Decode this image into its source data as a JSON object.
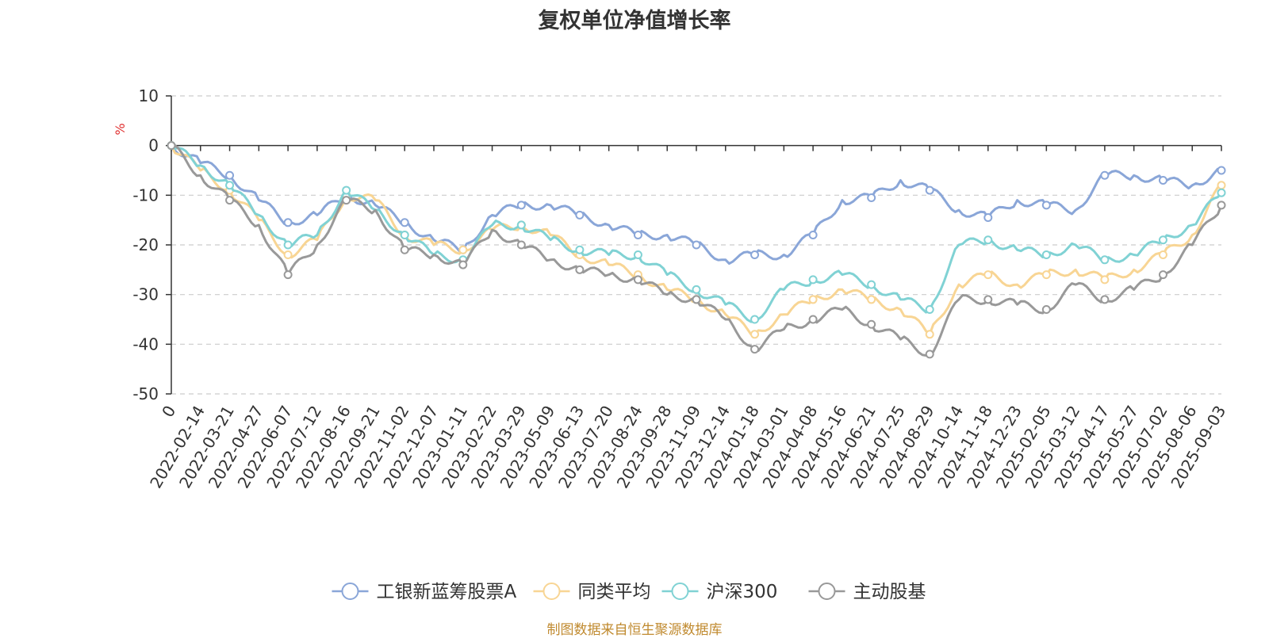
{
  "chart_data": {
    "type": "line",
    "title": "复权单位净值增长率",
    "ylabel": "%",
    "ylim": [
      -50,
      10
    ],
    "yticks": [
      10,
      0,
      -10,
      -20,
      -30,
      -40,
      -50
    ],
    "x_tick_labels": [
      "0",
      "2022-02-14",
      "2022-03-21",
      "2022-04-27",
      "2022-06-07",
      "2022-07-12",
      "2022-08-16",
      "2022-09-21",
      "2022-11-02",
      "2022-12-07",
      "2023-01-11",
      "2023-02-22",
      "2023-03-29",
      "2023-05-09",
      "2023-06-13",
      "2023-07-20",
      "2023-08-24",
      "2023-09-28",
      "2023-11-09",
      "2023-12-14",
      "2024-01-18",
      "2024-03-01",
      "2024-04-08",
      "2024-05-16",
      "2024-06-21",
      "2024-07-25",
      "2024-08-29",
      "2024-10-14",
      "2024-11-18",
      "2024-12-23",
      "2025-02-05",
      "2025-03-12",
      "2025-04-17",
      "2025-05-27",
      "2025-07-02",
      "2025-08-06",
      "2025-09-03"
    ],
    "grid": "horizontal-dashed",
    "legend_position": "bottom",
    "series": [
      {
        "name": "工银新蓝筹股票A",
        "color": "#8aa6d8",
        "values": [
          0,
          -3.5,
          -6,
          -11,
          -15.5,
          -14,
          -10,
          -12,
          -15.5,
          -19,
          -21,
          -14,
          -12,
          -12,
          -14,
          -16,
          -18,
          -18,
          -20,
          -23,
          -22,
          -22,
          -18,
          -11,
          -10.5,
          -7,
          -9,
          -13,
          -14.5,
          -11,
          -12,
          -13,
          -6,
          -6,
          -7,
          -8,
          -5
        ]
      },
      {
        "name": "同类平均",
        "color": "#f8d594",
        "values": [
          0,
          -5,
          -9,
          -15,
          -22,
          -19,
          -10,
          -11,
          -18,
          -20,
          -21,
          -17,
          -16,
          -18,
          -22,
          -24,
          -26,
          -29,
          -31,
          -34,
          -38,
          -34,
          -31,
          -29,
          -31,
          -33,
          -38,
          -28,
          -26,
          -28,
          -26,
          -25,
          -27,
          -25,
          -22,
          -18,
          -8
        ]
      },
      {
        "name": "沪深300",
        "color": "#80d2d4",
        "values": [
          0,
          -4,
          -8,
          -14,
          -20,
          -18,
          -9,
          -13,
          -18,
          -22,
          -23,
          -16,
          -16,
          -19,
          -21,
          -22,
          -22,
          -26,
          -29,
          -32,
          -35,
          -29,
          -27,
          -26,
          -28,
          -31,
          -33,
          -20,
          -19,
          -21,
          -22,
          -20,
          -23,
          -22,
          -19,
          -16,
          -9.5
        ]
      },
      {
        "name": "主动股基",
        "color": "#999999",
        "values": [
          0,
          -6,
          -11,
          -16,
          -26,
          -20,
          -11,
          -13,
          -21,
          -22,
          -24,
          -17,
          -20,
          -23,
          -25,
          -26,
          -27,
          -30,
          -31,
          -35,
          -41,
          -37,
          -35,
          -33,
          -36,
          -39,
          -42,
          -31,
          -31,
          -32,
          -33,
          -28,
          -31,
          -29,
          -26,
          -20,
          -12
        ]
      }
    ]
  },
  "source_note": "制图数据来自恒生聚源数据库"
}
